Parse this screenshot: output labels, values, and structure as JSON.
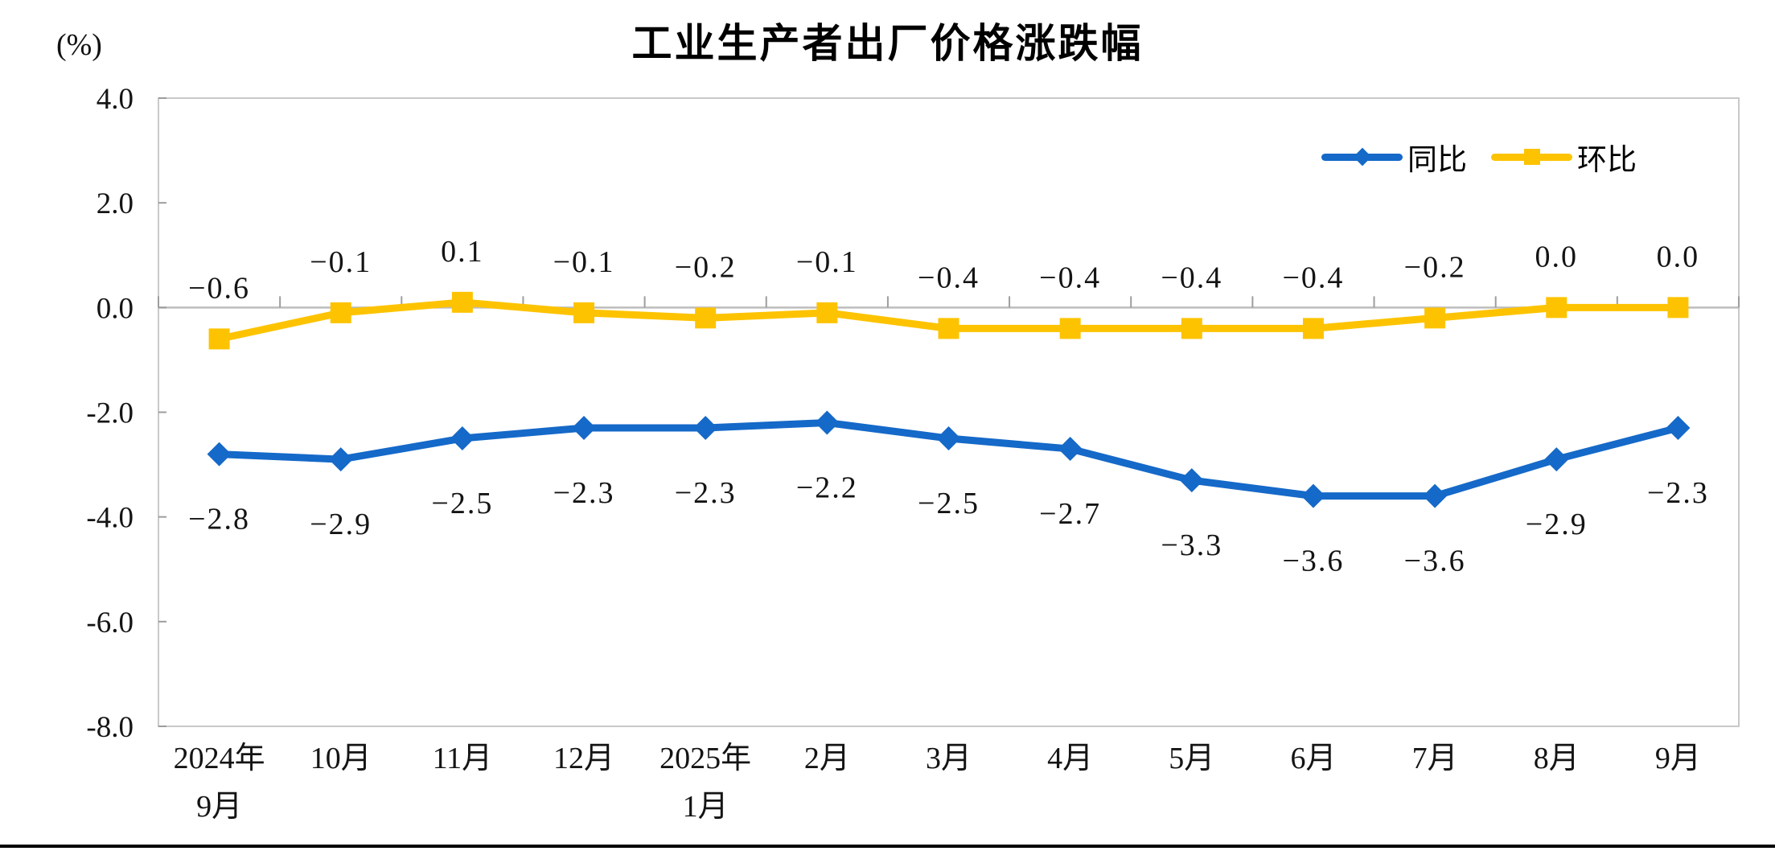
{
  "title": "工业生产者出厂价格涨跌幅",
  "y_axis_unit": "(%)",
  "chart_data": {
    "type": "line",
    "title": "工业生产者出厂价格涨跌幅",
    "ylabel": "(%)",
    "xlabel": "",
    "ylim": [
      -8.0,
      4.0
    ],
    "grid": "zero-axis-line-only",
    "legend_position": "top-right",
    "yticks": [
      {
        "value": 4.0,
        "label": "4.0"
      },
      {
        "value": 2.0,
        "label": "2.0"
      },
      {
        "value": 0.0,
        "label": "0.0"
      },
      {
        "value": -2.0,
        "label": "-2.0"
      },
      {
        "value": -4.0,
        "label": "-4.0"
      },
      {
        "value": -6.0,
        "label": "-6.0"
      },
      {
        "value": -8.0,
        "label": "-8.0"
      }
    ],
    "categories": [
      [
        "2024年",
        "9月"
      ],
      [
        "10月"
      ],
      [
        "11月"
      ],
      [
        "12月"
      ],
      [
        "2025年",
        "1月"
      ],
      [
        "2月"
      ],
      [
        "3月"
      ],
      [
        "4月"
      ],
      [
        "5月"
      ],
      [
        "6月"
      ],
      [
        "7月"
      ],
      [
        "8月"
      ],
      [
        "9月"
      ]
    ],
    "series": [
      {
        "name": "同比",
        "color": "#1569C8",
        "marker": "diamond",
        "label_position": "below",
        "values": [
          -2.8,
          -2.9,
          -2.5,
          -2.3,
          -2.3,
          -2.2,
          -2.5,
          -2.7,
          -3.3,
          -3.6,
          -3.6,
          -2.9,
          -2.3
        ],
        "labels": [
          "−2.8",
          "−2.9",
          "−2.5",
          "−2.3",
          "−2.3",
          "−2.2",
          "−2.5",
          "−2.7",
          "−3.3",
          "−3.6",
          "−3.6",
          "−2.9",
          "−2.3"
        ]
      },
      {
        "name": "环比",
        "color": "#FDC300",
        "marker": "square",
        "label_position": "above",
        "values": [
          -0.6,
          -0.1,
          0.1,
          -0.1,
          -0.2,
          -0.1,
          -0.4,
          -0.4,
          -0.4,
          -0.4,
          -0.2,
          0.0,
          0.0
        ],
        "labels": [
          "−0.6",
          "−0.1",
          "0.1",
          "−0.1",
          "−0.2",
          "−0.1",
          "−0.4",
          "−0.4",
          "−0.4",
          "−0.4",
          "−0.2",
          "0.0",
          "0.0"
        ]
      }
    ]
  }
}
